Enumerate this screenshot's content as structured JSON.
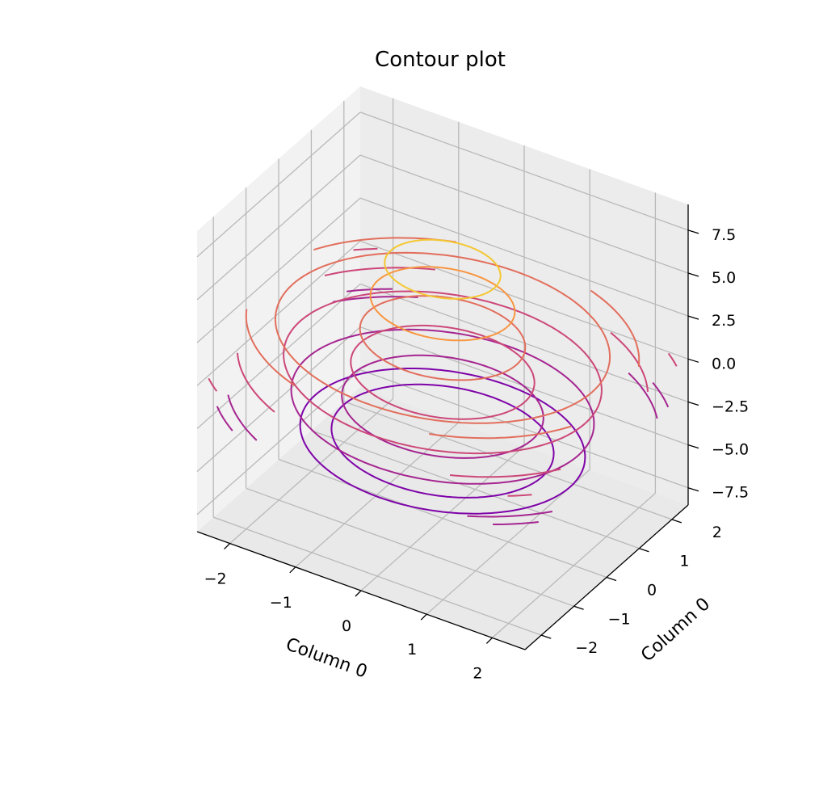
{
  "chart_data": {
    "type": "contour3d",
    "title": "Contour plot",
    "xlabel": "Column 0",
    "ylabel": "Column 0",
    "zlabel": "",
    "xlim": [
      -2.5,
      2.5
    ],
    "ylim": [
      -2.5,
      2.5
    ],
    "zlim": [
      -8.5,
      9
    ],
    "x_ticks": [
      "−2",
      "−1",
      "0",
      "1",
      "2"
    ],
    "y_ticks": [
      "−2",
      "−1",
      "0",
      "1",
      "2"
    ],
    "z_ticks": [
      "−7.5",
      "−5.0",
      "−2.5",
      "0.0",
      "2.5",
      "5.0",
      "7.5"
    ],
    "x_tick_values": [
      -2,
      -1,
      0,
      1,
      2
    ],
    "y_tick_values": [
      -2,
      -1,
      0,
      1,
      2
    ],
    "z_tick_values": [
      -7.5,
      -5.0,
      -2.5,
      0.0,
      2.5,
      5.0,
      7.5
    ],
    "grid": true,
    "colormap": "plasma",
    "levels": [
      -8.0,
      -6.0,
      -4.0,
      -2.0,
      0.0,
      2.0,
      4.0,
      6.0,
      8.0
    ]
  }
}
